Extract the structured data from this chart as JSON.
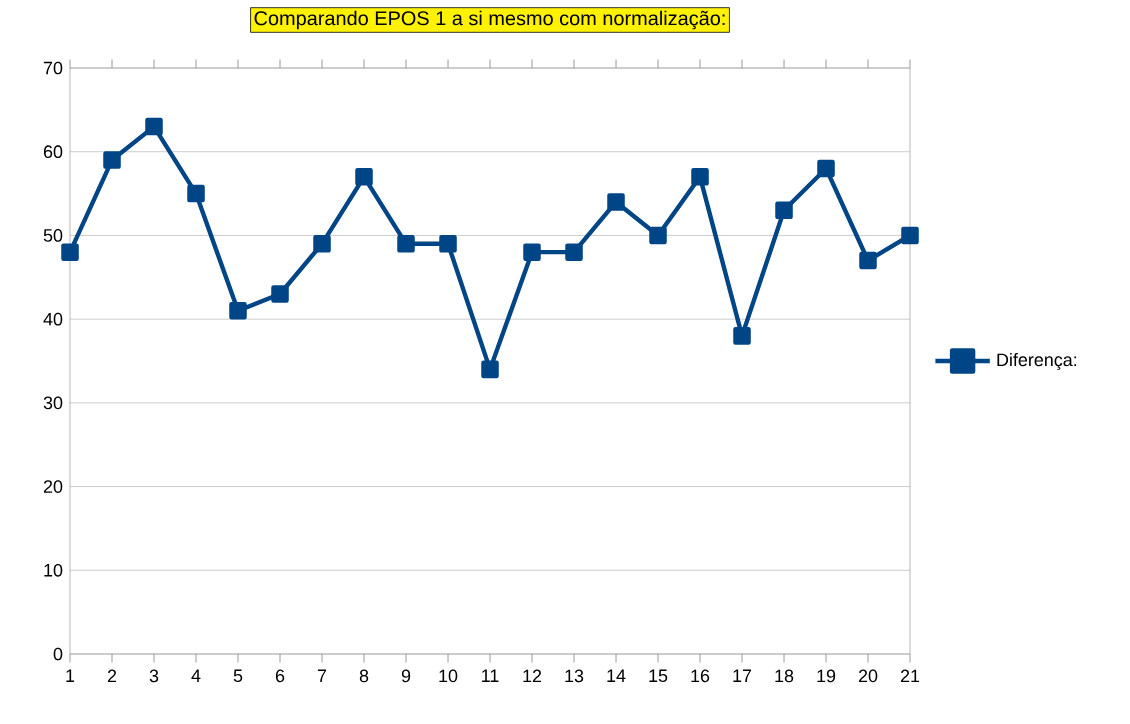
{
  "chart_data": {
    "type": "line",
    "title": "Comparando EPOS 1 a si mesmo com normalização:",
    "categories": [
      "1",
      "2",
      "3",
      "4",
      "5",
      "6",
      "7",
      "8",
      "9",
      "10",
      "11",
      "12",
      "13",
      "14",
      "15",
      "16",
      "17",
      "18",
      "19",
      "20",
      "21"
    ],
    "series": [
      {
        "name": "Diferença:",
        "color": "#004586",
        "values": [
          48,
          59,
          63,
          55,
          41,
          43,
          49,
          57,
          49,
          49,
          34,
          48,
          48,
          54,
          50,
          57,
          38,
          53,
          58,
          47,
          50
        ]
      }
    ],
    "ylim": [
      0,
      70
    ],
    "yticks": [
      0,
      10,
      20,
      30,
      40,
      50,
      60,
      70
    ],
    "grid": "y",
    "legend": "right",
    "marker": "square",
    "line_style": "solid"
  }
}
